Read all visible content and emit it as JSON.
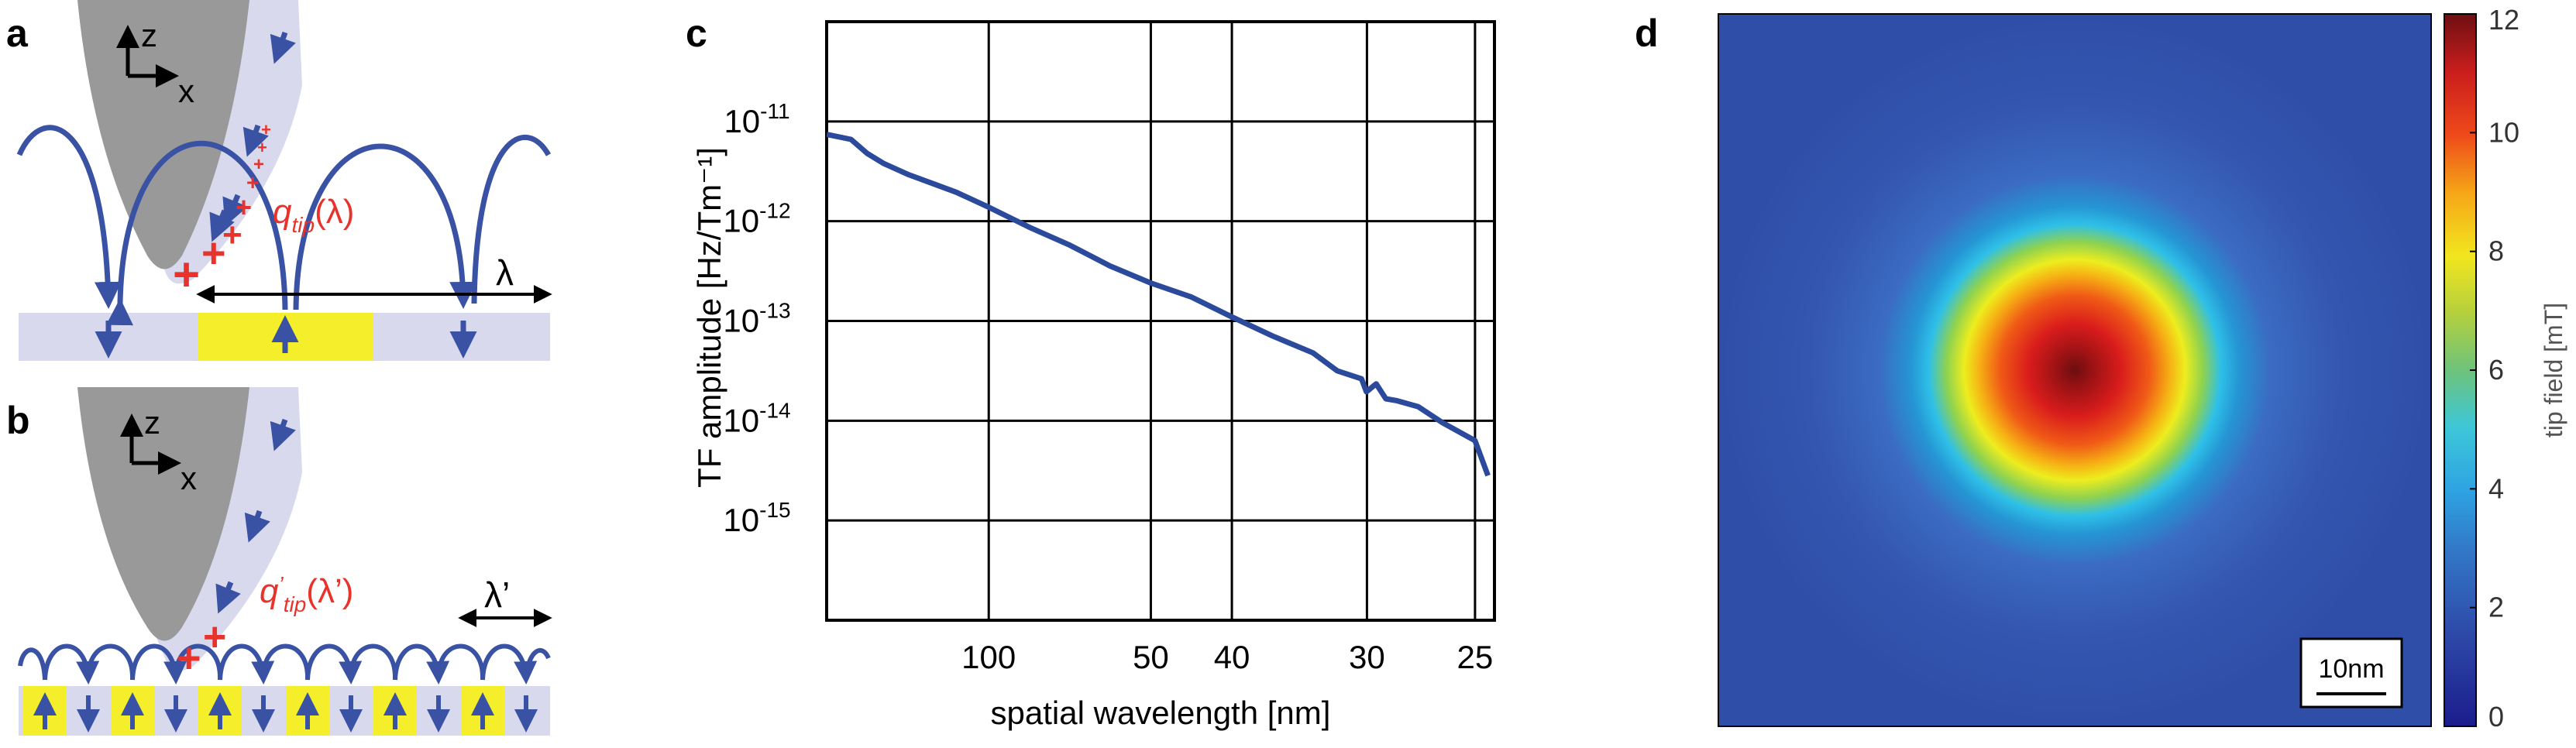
{
  "panel_labels": {
    "a": "a",
    "b": "b",
    "c": "c",
    "d": "d"
  },
  "panel_a": {
    "axis_z": "z",
    "axis_x": "x",
    "charge_symbol": "q",
    "charge_subscript": "tip",
    "charge_argument": "(λ)",
    "wavelength_label": "λ"
  },
  "panel_b": {
    "axis_z": "z",
    "axis_x": "x",
    "charge_symbol": "q",
    "charge_prime": "’",
    "charge_subscript": "tip",
    "charge_argument": "(λ’)",
    "wavelength_label": "λ’"
  },
  "chart_data": [
    {
      "type": "line",
      "panel": "c",
      "xlabel": "spatial wavelength [nm]",
      "ylabel": "TF amplitude [Hz/Tm⁻¹]",
      "xscale": "inverse (spatial frequency)",
      "xlim_frequency_per_nm": [
        0.0,
        0.0412
      ],
      "yscale": "log",
      "ylim": [
        1e-16,
        1e-10
      ],
      "grid": true,
      "x_tick_labels": [
        "100",
        "50",
        "40",
        "30",
        "25"
      ],
      "x_tick_values_nm": [
        100,
        50,
        40,
        30,
        25
      ],
      "y_tick_labels": [
        {
          "base": "10",
          "exp": "-11"
        },
        {
          "base": "10",
          "exp": "-12"
        },
        {
          "base": "10",
          "exp": "-13"
        },
        {
          "base": "10",
          "exp": "-14"
        },
        {
          "base": "10",
          "exp": "-15"
        }
      ],
      "y_tick_exponents": [
        -11,
        -12,
        -13,
        -14,
        -15
      ],
      "series": [
        {
          "name": "TF amplitude",
          "color": "#2b4a9b",
          "x_freq_per_nm": [
            0.0,
            0.0015,
            0.0025,
            0.0035,
            0.005,
            0.0065,
            0.008,
            0.01,
            0.0125,
            0.015,
            0.0175,
            0.02,
            0.0225,
            0.025,
            0.0275,
            0.03,
            0.0315,
            0.033,
            0.0333,
            0.0339,
            0.0345,
            0.0352,
            0.0365,
            0.038,
            0.04,
            0.0408
          ],
          "y_log10": [
            -11.13,
            -11.18,
            -11.32,
            -11.42,
            -11.53,
            -11.62,
            -11.71,
            -11.86,
            -12.06,
            -12.24,
            -12.45,
            -12.62,
            -12.76,
            -12.96,
            -13.15,
            -13.32,
            -13.5,
            -13.58,
            -13.71,
            -13.63,
            -13.78,
            -13.8,
            -13.86,
            -14.02,
            -14.2,
            -14.55
          ]
        }
      ]
    },
    {
      "type": "heatmap",
      "panel": "d",
      "description_label": "tip field",
      "colorbar_label": "tip field [mT]",
      "colorbar_range": [
        0,
        12
      ],
      "colorbar_ticks": [
        "0",
        "2",
        "4",
        "6",
        "8",
        "10",
        "12"
      ],
      "colorbar_tick_values": [
        0,
        2,
        4,
        6,
        8,
        10,
        12
      ],
      "peak_value_mT": 12,
      "background_value_mT": 1.6,
      "scale_bar_label": "10nm"
    }
  ],
  "colors": {
    "tip": "#999999",
    "sample": "#d9d9ee",
    "magnet_up_domain": "#f5ee2a",
    "arrow": "#3a52a4",
    "charge": "#e8332c",
    "line": "#2b4a9b"
  }
}
